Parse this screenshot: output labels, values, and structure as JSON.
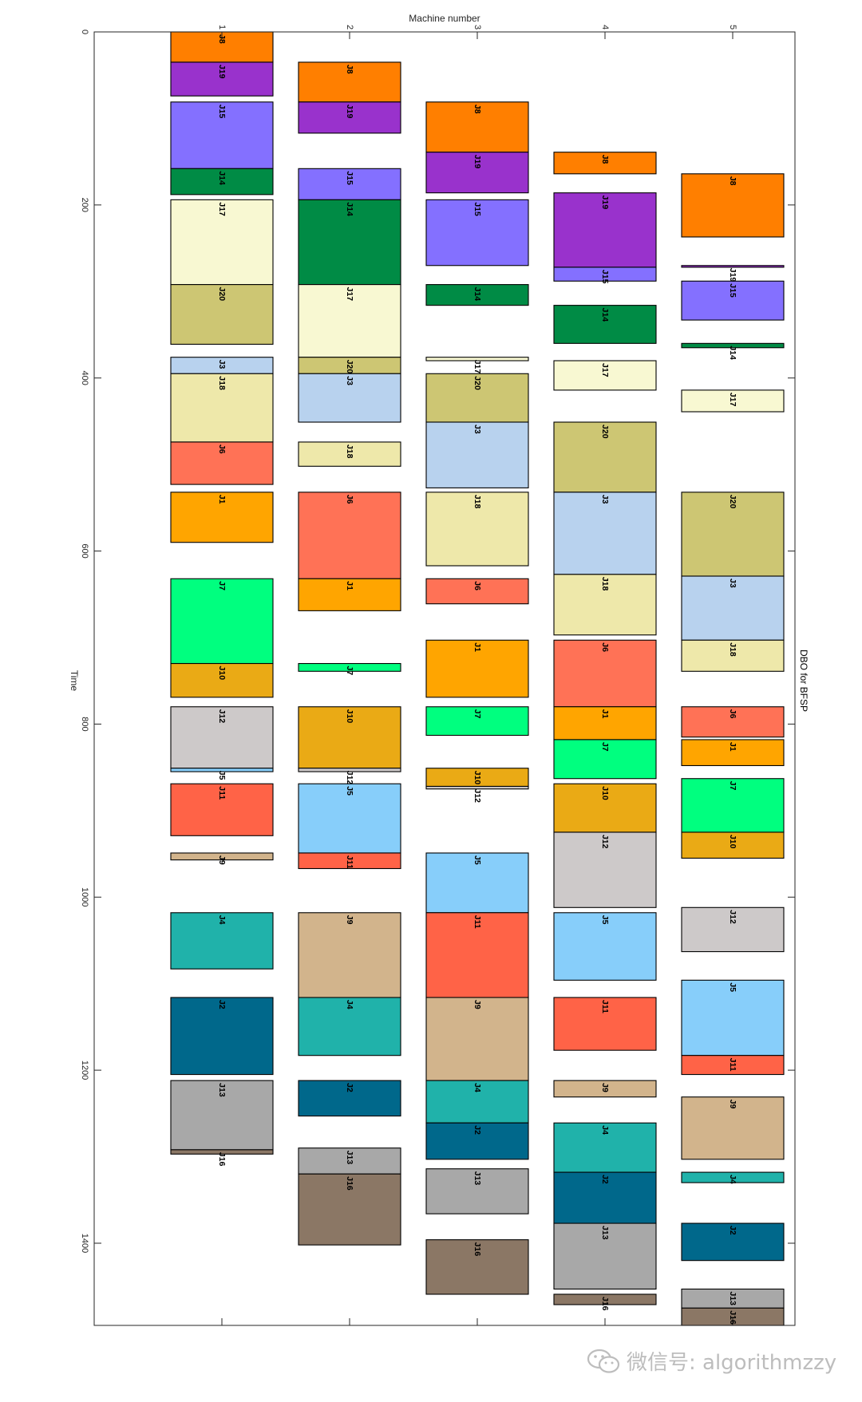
{
  "chart_data": {
    "type": "gantt",
    "title": "DBO for BFSP",
    "xlabel": "Machine number",
    "ylabel": "Time",
    "x_ticks": [
      "1",
      "2",
      "3",
      "4",
      "5"
    ],
    "y_ticks": [
      "0",
      "200",
      "400",
      "600",
      "800",
      "1000",
      "1200",
      "1400"
    ],
    "ylim": [
      0,
      1495
    ],
    "xlim": [
      0,
      5.5
    ],
    "job_colors": {
      "J1": "#ffa500",
      "J2": "#00688b",
      "J3": "#b8d2ee",
      "J4": "#20b2aa",
      "J5": "#87cefa",
      "J6": "#ff7256",
      "J7": "#00ff7f",
      "J8": "#ff7f00",
      "J9": "#d2b48c",
      "J10": "#eaaa15",
      "J11": "#ff6347",
      "J12": "#cdc9c9",
      "J13": "#a8a8a8",
      "J14": "#008b45",
      "J15": "#8470ff",
      "J16": "#8b7765",
      "J17": "#f8f8d2",
      "J18": "#eee8aa",
      "J19": "#9932cc",
      "J20": "#cdc673"
    },
    "machines": [
      {
        "machine": "1",
        "ops": [
          {
            "job": "J8",
            "start": 0,
            "end": 35
          },
          {
            "job": "J19",
            "start": 35,
            "end": 74
          },
          {
            "job": "J15",
            "start": 81,
            "end": 158
          },
          {
            "job": "J14",
            "start": 158,
            "end": 188
          },
          {
            "job": "J17",
            "start": 194,
            "end": 292
          },
          {
            "job": "J20",
            "start": 292,
            "end": 361
          },
          {
            "job": "J3",
            "start": 376,
            "end": 395
          },
          {
            "job": "J18",
            "start": 395,
            "end": 474
          },
          {
            "job": "J6",
            "start": 474,
            "end": 523
          },
          {
            "job": "J1",
            "start": 532,
            "end": 590
          },
          {
            "job": "J7",
            "start": 632,
            "end": 730
          },
          {
            "job": "J10",
            "start": 730,
            "end": 769
          },
          {
            "job": "J12",
            "start": 780,
            "end": 851
          },
          {
            "job": "J5",
            "start": 851,
            "end": 855
          },
          {
            "job": "J11",
            "start": 869,
            "end": 929
          },
          {
            "job": "J9",
            "start": 949,
            "end": 957
          },
          {
            "job": "J4",
            "start": 1018,
            "end": 1083
          },
          {
            "job": "J2",
            "start": 1116,
            "end": 1205
          },
          {
            "job": "J13",
            "start": 1212,
            "end": 1292
          },
          {
            "job": "J16",
            "start": 1292,
            "end": 1297
          }
        ]
      },
      {
        "machine": "2",
        "ops": [
          {
            "job": "J8",
            "start": 35,
            "end": 81
          },
          {
            "job": "J19",
            "start": 81,
            "end": 117
          },
          {
            "job": "J15",
            "start": 158,
            "end": 194
          },
          {
            "job": "J14",
            "start": 194,
            "end": 292
          },
          {
            "job": "J17",
            "start": 292,
            "end": 376
          },
          {
            "job": "J20",
            "start": 376,
            "end": 395
          },
          {
            "job": "J3",
            "start": 395,
            "end": 451
          },
          {
            "job": "J18",
            "start": 474,
            "end": 502
          },
          {
            "job": "J6",
            "start": 532,
            "end": 632
          },
          {
            "job": "J1",
            "start": 632,
            "end": 669
          },
          {
            "job": "J7",
            "start": 730,
            "end": 739
          },
          {
            "job": "J10",
            "start": 780,
            "end": 851
          },
          {
            "job": "J12",
            "start": 851,
            "end": 855
          },
          {
            "job": "J5",
            "start": 869,
            "end": 949
          },
          {
            "job": "J11",
            "start": 949,
            "end": 967
          },
          {
            "job": "J9",
            "start": 1018,
            "end": 1116
          },
          {
            "job": "J4",
            "start": 1116,
            "end": 1183
          },
          {
            "job": "J2",
            "start": 1212,
            "end": 1253
          },
          {
            "job": "J13",
            "start": 1290,
            "end": 1320
          },
          {
            "job": "J16",
            "start": 1320,
            "end": 1402
          }
        ]
      },
      {
        "machine": "3",
        "ops": [
          {
            "job": "J8",
            "start": 81,
            "end": 139
          },
          {
            "job": "J19",
            "start": 139,
            "end": 186
          },
          {
            "job": "J15",
            "start": 194,
            "end": 270
          },
          {
            "job": "J14",
            "start": 292,
            "end": 316
          },
          {
            "job": "J17",
            "start": 376,
            "end": 380
          },
          {
            "job": "J20",
            "start": 395,
            "end": 451
          },
          {
            "job": "J3",
            "start": 451,
            "end": 527
          },
          {
            "job": "J18",
            "start": 532,
            "end": 617
          },
          {
            "job": "J6",
            "start": 632,
            "end": 661
          },
          {
            "job": "J1",
            "start": 703,
            "end": 769
          },
          {
            "job": "J7",
            "start": 780,
            "end": 813
          },
          {
            "job": "J10",
            "start": 851,
            "end": 872
          },
          {
            "job": "J12",
            "start": 872,
            "end": 875
          },
          {
            "job": "J5",
            "start": 949,
            "end": 1018
          },
          {
            "job": "J11",
            "start": 1018,
            "end": 1116
          },
          {
            "job": "J9",
            "start": 1116,
            "end": 1212
          },
          {
            "job": "J4",
            "start": 1212,
            "end": 1261
          },
          {
            "job": "J2",
            "start": 1261,
            "end": 1303
          },
          {
            "job": "J13",
            "start": 1314,
            "end": 1366
          },
          {
            "job": "J16",
            "start": 1396,
            "end": 1459
          }
        ]
      },
      {
        "machine": "4",
        "ops": [
          {
            "job": "J8",
            "start": 139,
            "end": 164
          },
          {
            "job": "J19",
            "start": 186,
            "end": 272
          },
          {
            "job": "J15",
            "start": 272,
            "end": 288
          },
          {
            "job": "J14",
            "start": 316,
            "end": 360
          },
          {
            "job": "J17",
            "start": 380,
            "end": 414
          },
          {
            "job": "J20",
            "start": 451,
            "end": 532
          },
          {
            "job": "J3",
            "start": 532,
            "end": 627
          },
          {
            "job": "J18",
            "start": 627,
            "end": 697
          },
          {
            "job": "J6",
            "start": 703,
            "end": 780
          },
          {
            "job": "J1",
            "start": 780,
            "end": 818
          },
          {
            "job": "J7",
            "start": 818,
            "end": 863
          },
          {
            "job": "J10",
            "start": 869,
            "end": 925
          },
          {
            "job": "J12",
            "start": 925,
            "end": 1012
          },
          {
            "job": "J5",
            "start": 1018,
            "end": 1096
          },
          {
            "job": "J11",
            "start": 1116,
            "end": 1177
          },
          {
            "job": "J9",
            "start": 1212,
            "end": 1231
          },
          {
            "job": "J4",
            "start": 1261,
            "end": 1318
          },
          {
            "job": "J2",
            "start": 1318,
            "end": 1377
          },
          {
            "job": "J13",
            "start": 1377,
            "end": 1453
          },
          {
            "job": "J16",
            "start": 1459,
            "end": 1471
          }
        ]
      },
      {
        "machine": "5",
        "ops": [
          {
            "job": "J8",
            "start": 164,
            "end": 237
          },
          {
            "job": "J19",
            "start": 270,
            "end": 272
          },
          {
            "job": "J15",
            "start": 288,
            "end": 333
          },
          {
            "job": "J14",
            "start": 360,
            "end": 365
          },
          {
            "job": "J17",
            "start": 414,
            "end": 439
          },
          {
            "job": "J20",
            "start": 532,
            "end": 629
          },
          {
            "job": "J3",
            "start": 629,
            "end": 703
          },
          {
            "job": "J18",
            "start": 703,
            "end": 739
          },
          {
            "job": "J6",
            "start": 780,
            "end": 815
          },
          {
            "job": "J1",
            "start": 818,
            "end": 848
          },
          {
            "job": "J7",
            "start": 863,
            "end": 925
          },
          {
            "job": "J10",
            "start": 925,
            "end": 955
          },
          {
            "job": "J12",
            "start": 1012,
            "end": 1063
          },
          {
            "job": "J5",
            "start": 1096,
            "end": 1183
          },
          {
            "job": "J11",
            "start": 1183,
            "end": 1205
          },
          {
            "job": "J9",
            "start": 1231,
            "end": 1303
          },
          {
            "job": "J4",
            "start": 1318,
            "end": 1330
          },
          {
            "job": "J2",
            "start": 1377,
            "end": 1420
          },
          {
            "job": "J13",
            "start": 1453,
            "end": 1475
          },
          {
            "job": "J16",
            "start": 1475,
            "end": 1495
          }
        ]
      }
    ]
  },
  "watermark": {
    "text": "微信号: algorithmzzy",
    "icon": "wechat-icon"
  }
}
